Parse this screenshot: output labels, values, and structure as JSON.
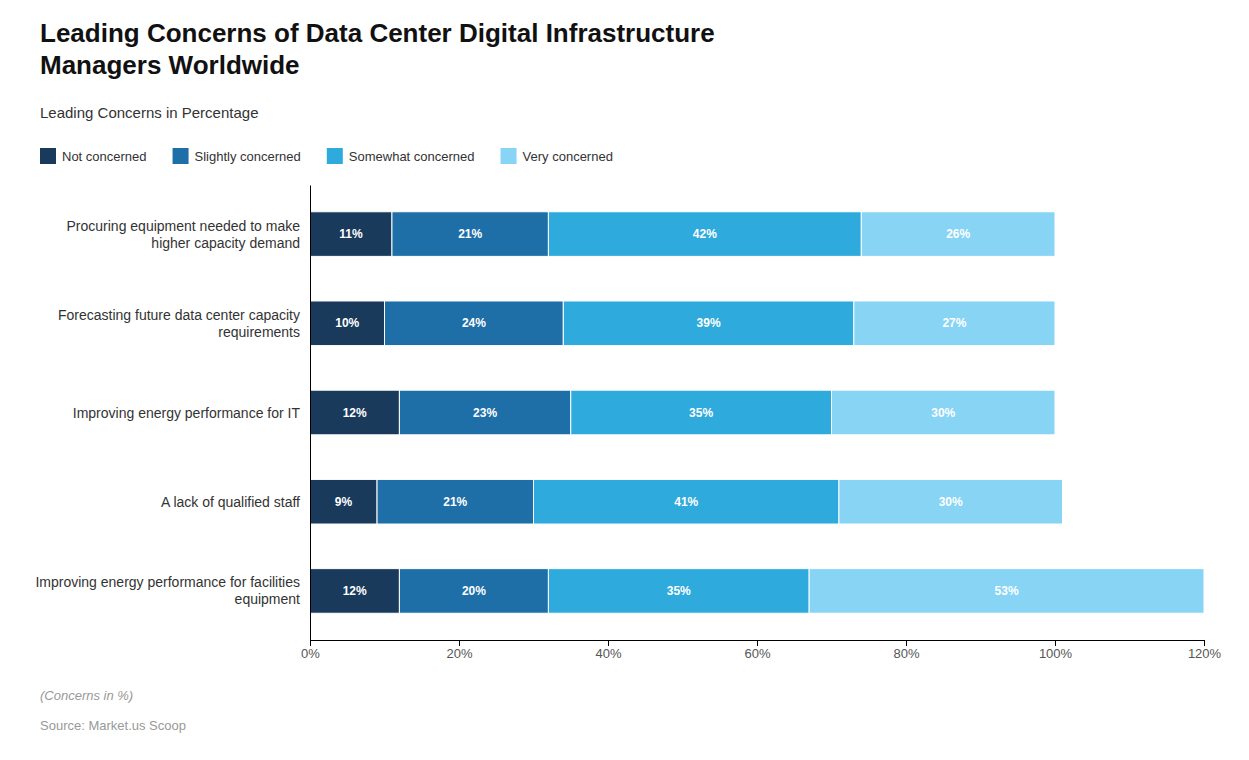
{
  "chart_data": {
    "type": "bar",
    "orientation": "horizontal",
    "stacked": true,
    "data_labels": true,
    "grid": false,
    "legend": "top",
    "title": "Leading Concerns of Data Center Digital Infrastructure\nManagers Worldwide",
    "subtitle": "Leading Concerns in Percentage",
    "annotations": [
      "(Concerns in %)",
      "Source: Market.us Scoop"
    ],
    "categories": [
      "Procuring equipment needed to make\nhigher capacity demand",
      "Forecasting future data center capacity\nrequirements",
      "Improving energy performance for IT",
      "A lack of qualified staff",
      "Improving energy performance for facilities\nequipment"
    ],
    "series": [
      {
        "name": "Not concerned",
        "color": "#1a3a5c",
        "values": [
          11,
          10,
          12,
          9,
          12
        ],
        "value_labels": [
          "11%",
          "10%",
          "12%",
          "9%",
          "12%"
        ]
      },
      {
        "name": "Slightly concerned",
        "color": "#1e6fa8",
        "values": [
          21,
          24,
          23,
          21,
          20
        ],
        "value_labels": [
          "21%",
          "24%",
          "23%",
          "21%",
          "20%"
        ]
      },
      {
        "name": "Somewhat concerned",
        "color": "#2eaadc",
        "values": [
          42,
          39,
          35,
          41,
          35
        ],
        "value_labels": [
          "42%",
          "39%",
          "35%",
          "41%",
          "35%"
        ]
      },
      {
        "name": "Very concerned",
        "color": "#87d4f5",
        "values": [
          26,
          27,
          30,
          30,
          53
        ],
        "value_labels": [
          "26%",
          "27%",
          "30%",
          "30%",
          "53%"
        ]
      }
    ],
    "xlim": [
      0,
      120
    ],
    "xticks": [
      {
        "value": 0,
        "label": "0%"
      },
      {
        "value": 20,
        "label": "20%"
      },
      {
        "value": 40,
        "label": "40%"
      },
      {
        "value": 60,
        "label": "60%"
      },
      {
        "value": 80,
        "label": "80%"
      },
      {
        "value": 100,
        "label": "100%"
      },
      {
        "value": 120,
        "label": "120%"
      }
    ]
  }
}
